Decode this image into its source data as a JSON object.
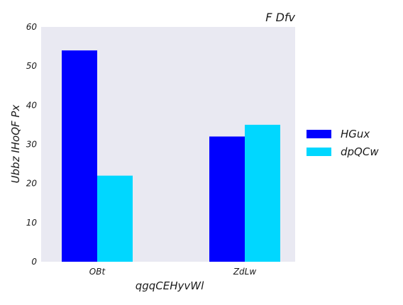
{
  "chart_data": {
    "type": "bar",
    "title": "F Dfv",
    "xlabel": "qgqCEHyvWl",
    "ylabel": "Ubbz IHoQF Px",
    "categories": [
      "OBt",
      "ZdLw"
    ],
    "series": [
      {
        "name": "HGux",
        "values": [
          54,
          32
        ],
        "color": "#0000ff"
      },
      {
        "name": "dpQCw",
        "values": [
          22,
          35
        ],
        "color": "#00d7ff"
      }
    ],
    "ylim": [
      0,
      60
    ],
    "yticks": [
      0,
      10,
      20,
      30,
      40,
      50,
      60
    ],
    "grid": false,
    "legend_position": "right",
    "plot_background": "#e9e9f2"
  }
}
